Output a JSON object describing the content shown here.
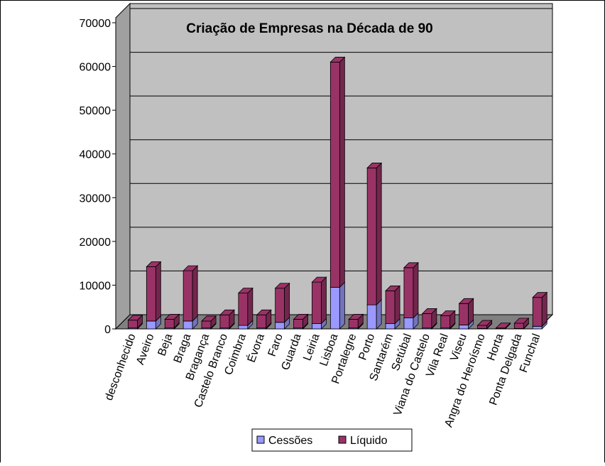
{
  "chart_data": {
    "type": "bar3d_stacked",
    "title": "Criação de Empresas na Década de 90",
    "categories": [
      "desconhecido",
      "Aveiro",
      "Beja",
      "Braga",
      "Bragança",
      "Castelo Branco",
      "Coimbra",
      "Évora",
      "Faro",
      "Guarda",
      "Leiria",
      "Lisboa",
      "Portalegre",
      "Porto",
      "Santarém",
      "Setúbal",
      "Viana do Castelo",
      "Vila Real",
      "Viseu",
      "Angra do Heroísmo",
      "Horta",
      "Ponta Delgada",
      "Funchal"
    ],
    "series": [
      {
        "name": "Cessões",
        "color": "#9999ff",
        "values": [
          200,
          1800,
          200,
          1800,
          200,
          200,
          800,
          200,
          1500,
          200,
          1200,
          9500,
          200,
          5500,
          1200,
          2500,
          200,
          200,
          900,
          100,
          50,
          100,
          600
        ]
      },
      {
        "name": "Líquido",
        "color": "#993366",
        "values": [
          1800,
          12400,
          2000,
          11500,
          1600,
          3000,
          7400,
          3000,
          7800,
          2000,
          9500,
          51500,
          2000,
          31300,
          7500,
          11500,
          3300,
          2800,
          4900,
          700,
          150,
          1200,
          6600
        ]
      }
    ],
    "ylim": [
      0,
      70000
    ],
    "yticks": [
      0,
      10000,
      20000,
      30000,
      40000,
      50000,
      60000,
      70000
    ],
    "grid": true,
    "legend": "bottom"
  }
}
